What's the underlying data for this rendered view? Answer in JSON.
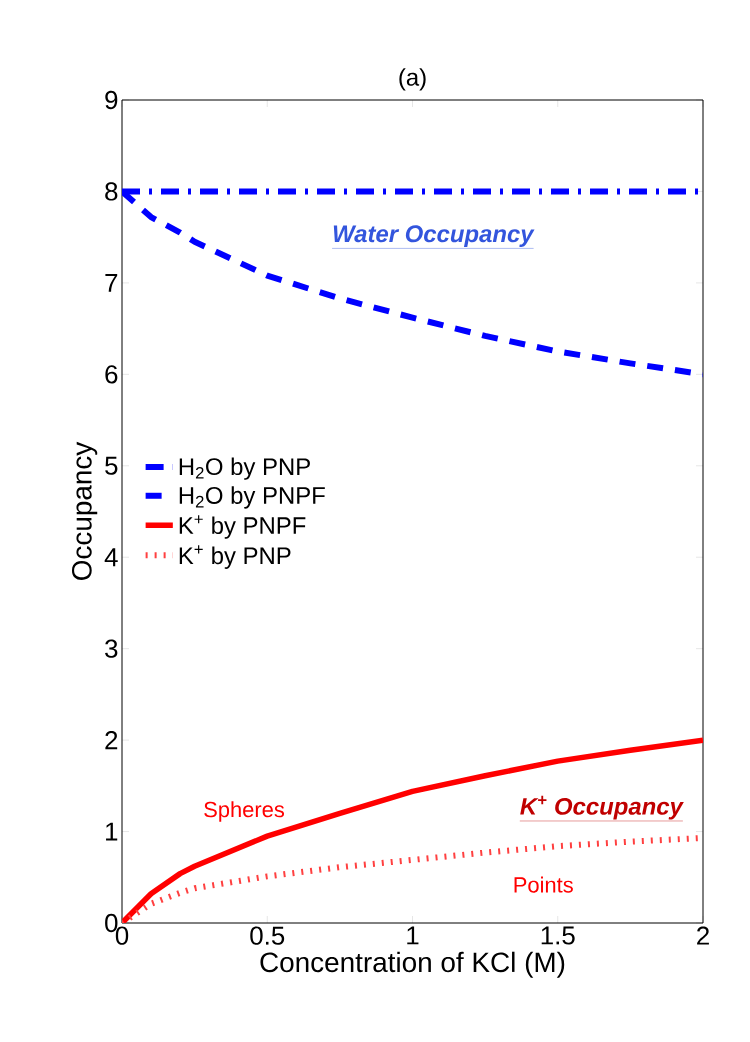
{
  "chart_data": {
    "type": "line",
    "title": "(a)",
    "xlabel": "Concentration of KCl (M)",
    "ylabel": "Occupancy",
    "x": [
      0,
      0.1,
      0.2,
      0.25,
      0.5,
      0.75,
      1,
      1.25,
      1.5,
      1.75,
      2
    ],
    "series": [
      {
        "name": "H$_{2}$O by PNP",
        "color": "#0000ff",
        "line_style": "dashdot",
        "values": [
          8,
          8,
          8,
          8,
          8,
          8,
          8,
          8,
          8,
          8,
          8
        ]
      },
      {
        "name": "H$_{2}$O by PNPF",
        "color": "#0000ff",
        "line_style": "dashed",
        "values": [
          8,
          7.72,
          7.55,
          7.45,
          7.08,
          6.83,
          6.62,
          6.42,
          6.25,
          6.12,
          6.0
        ]
      },
      {
        "name": "K$^{+}$ by PNPF",
        "color": "#ff0000",
        "line_style": "solid",
        "values": [
          0,
          0.32,
          0.54,
          0.62,
          0.95,
          1.2,
          1.44,
          1.61,
          1.77,
          1.89,
          2.0
        ]
      },
      {
        "name": "K$^{+}$ by PNP",
        "color": "#ff4040",
        "line_style": "dotted",
        "values": [
          0,
          0.21,
          0.33,
          0.38,
          0.51,
          0.61,
          0.69,
          0.77,
          0.84,
          0.89,
          0.93
        ]
      }
    ],
    "xlim": [
      0,
      2
    ],
    "ylim": [
      0,
      9
    ],
    "xticks": [
      0,
      0.5,
      1,
      1.5,
      2
    ],
    "yticks": [
      0,
      1,
      2,
      3,
      4,
      5,
      6,
      7,
      8,
      9
    ],
    "legend": "left",
    "grid": false,
    "annotations": [
      "Water Occupancy",
      "K$^{+}$ Occupancy",
      "Spheres",
      "Points"
    ]
  }
}
